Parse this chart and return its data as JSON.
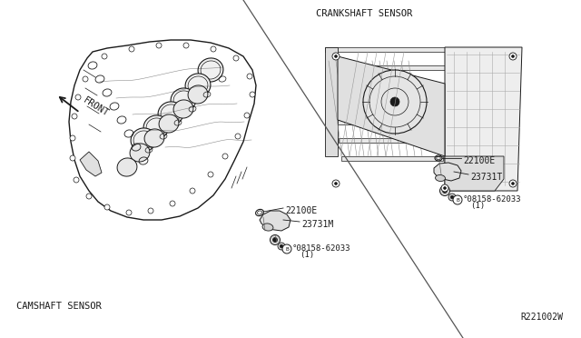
{
  "bg_color": "#ffffff",
  "labels": {
    "crankshaft_sensor": "CRANKSHAFT SENSOR",
    "camshaft_sensor": "CAMSHAFT SENSOR",
    "front": "FRONT",
    "ref_code": "R221002W",
    "part_22100E_cam": "22100E",
    "part_23731M": "23731M",
    "part_bolt_cam_line1": "°08158-62033",
    "part_bolt_cam_line2": "(1)",
    "part_22100E_crank": "22100E",
    "part_23731T": "23731T",
    "part_bolt_crank_line1": "°08158-62033",
    "part_bolt_crank_line2": "(1)"
  },
  "diag_line": [
    [
      268,
      372
    ],
    [
      510,
      0
    ]
  ],
  "figsize": [
    6.4,
    3.72
  ],
  "dpi": 100,
  "lc": "#1a1a1a"
}
